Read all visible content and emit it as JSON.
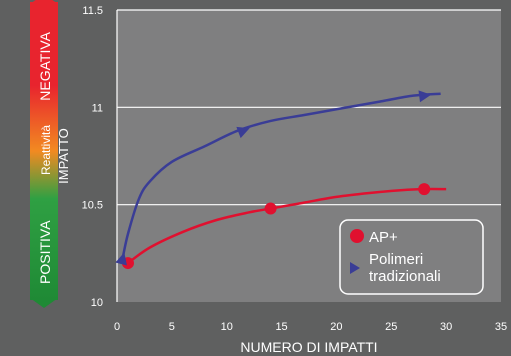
{
  "scale_bar": {
    "negative_label": "NEGATIVA",
    "middle_label": "Reattività",
    "positive_label": "POSITIVA",
    "colors": {
      "top": "#e8242e",
      "middle": "#f28a21",
      "lower": "#2fa043",
      "bottom": "#1f8a35"
    }
  },
  "legend": {
    "items": [
      {
        "label": "AP+",
        "marker": "circle",
        "color": "#e0102f"
      },
      {
        "label": "Polimeri tradizionali",
        "marker": "triangle",
        "color": "#3a3d96"
      }
    ]
  },
  "chart_data": {
    "type": "line",
    "xlabel": "NUMERO DI IMPATTI",
    "ylabel": "IMPATTO",
    "xlim": [
      0,
      35
    ],
    "ylim": [
      10,
      11.5
    ],
    "xticks": [
      "0",
      "5",
      "10",
      "15",
      "20",
      "25",
      "30",
      "35"
    ],
    "yticks": [
      "10",
      "10.5",
      "11",
      "11.5"
    ],
    "grid": true,
    "legend_position": "bottom-right",
    "series": [
      {
        "name": "AP+",
        "color": "#e0102f",
        "marker": "circle",
        "curve_x": [
          1,
          3,
          6,
          9,
          12,
          14,
          17,
          20,
          23,
          26,
          28,
          30
        ],
        "curve_y": [
          10.2,
          10.28,
          10.36,
          10.42,
          10.46,
          10.48,
          10.51,
          10.54,
          10.56,
          10.575,
          10.58,
          10.58
        ],
        "marker_x": [
          1,
          14,
          28
        ],
        "marker_y": [
          10.2,
          10.48,
          10.58
        ]
      },
      {
        "name": "Polimeri tradizionali",
        "color": "#3a3d96",
        "marker": "triangle",
        "curve_x": [
          0.5,
          1,
          2,
          3,
          5,
          8,
          11,
          14,
          17,
          20,
          24,
          27,
          29.5
        ],
        "curve_y": [
          10.22,
          10.35,
          10.53,
          10.62,
          10.72,
          10.8,
          10.88,
          10.93,
          10.96,
          10.99,
          11.03,
          11.06,
          11.07
        ],
        "marker_x": [
          0.5,
          11.5,
          28
        ],
        "marker_y": [
          10.22,
          10.88,
          11.06
        ]
      }
    ]
  }
}
